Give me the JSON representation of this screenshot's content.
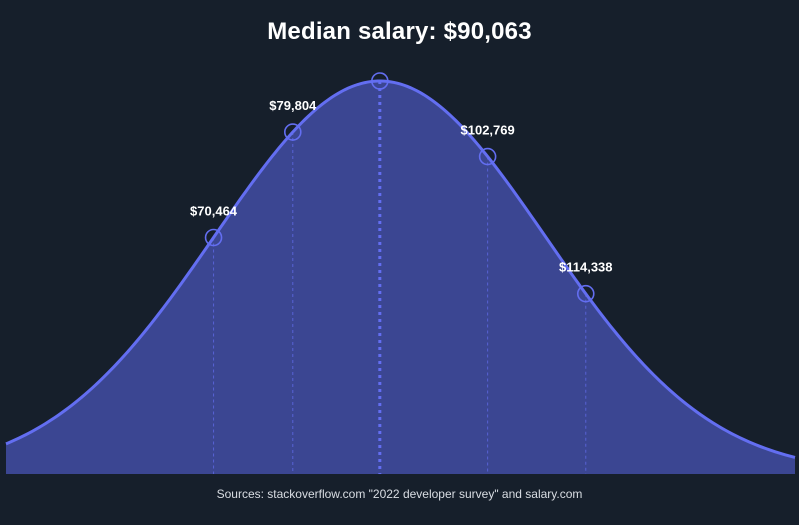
{
  "chart_data": {
    "type": "area",
    "title": "Median salary: $90,063",
    "distribution": "normal",
    "median": 90063,
    "percentile_points": [
      {
        "label": "$70,464",
        "value": 70464,
        "density": 0.6
      },
      {
        "label": "$79,804",
        "value": 79804,
        "density": 0.8
      },
      {
        "label": "",
        "value": 90063,
        "density": 1.0
      },
      {
        "label": "$102,769",
        "value": 102769,
        "density": 0.8
      },
      {
        "label": "$114,338",
        "value": 114338,
        "density": 0.6
      }
    ],
    "xlim": [
      46000,
      139000
    ],
    "colors": {
      "background": "#161f2b",
      "fill": "#3b4692",
      "line": "#636ef1"
    }
  },
  "source": "Sources: stackoverflow.com \"2022 developer survey\" and salary.com"
}
